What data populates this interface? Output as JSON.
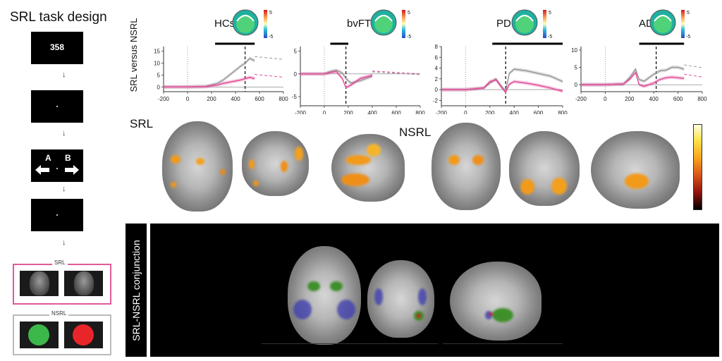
{
  "task_panel": {
    "title": "SRL task design",
    "screen1_text": "358",
    "choice_left": "A",
    "choice_right": "B",
    "arrow_glyph": "↓",
    "srl_box_label": "SRL",
    "nsrl_box_label": "NSRL",
    "colors": {
      "srl_border": "#e05b9a",
      "nsrl_border": "#bbbbbb",
      "green_dot": "#3cb84a",
      "red_dot": "#e8262a"
    }
  },
  "colorbar_scale": {
    "top": "5",
    "bottom": "-5"
  },
  "chart_data": [
    {
      "type": "line",
      "group": "HCs",
      "ylabel": "SRL versus NSRL",
      "xlim": [
        -200,
        800
      ],
      "ylim": [
        -2,
        17
      ],
      "x_ticks": [
        "-200",
        "0",
        "200",
        "400",
        "600",
        "800"
      ],
      "y_ticks": [
        "0",
        "5",
        "10",
        "15"
      ],
      "marker_x": 480,
      "bar": [
        230,
        560
      ],
      "series": [
        {
          "color": "#999999",
          "x": [
            -200,
            0,
            150,
            200,
            250,
            300,
            350,
            400,
            450,
            480,
            520,
            560
          ],
          "y": [
            0,
            0,
            0.2,
            0.8,
            1.5,
            3,
            5,
            7,
            9,
            10,
            12,
            11
          ]
        },
        {
          "color": "#e0509a",
          "x": [
            -200,
            0,
            150,
            200,
            250,
            300,
            350,
            400,
            450,
            480,
            520,
            560
          ],
          "y": [
            0,
            0,
            0.1,
            0.5,
            0.8,
            1.5,
            2,
            2.5,
            3,
            3.5,
            4,
            3.5
          ]
        }
      ]
    },
    {
      "type": "line",
      "group": "bvFTD",
      "xlim": [
        -200,
        800
      ],
      "ylim": [
        -7,
        6
      ],
      "x_ticks": [
        "-200",
        "0",
        "200",
        "400",
        "600",
        "800"
      ],
      "y_ticks": [
        "-5",
        "0",
        "5"
      ],
      "marker_x": 180,
      "bar": [
        50,
        200
      ],
      "series": [
        {
          "color": "#999999",
          "x": [
            -200,
            0,
            50,
            100,
            150,
            180,
            220,
            300,
            400
          ],
          "y": [
            0,
            0,
            0.5,
            0.8,
            0.2,
            -1,
            -2,
            -1.5,
            -0.5
          ]
        },
        {
          "color": "#e0509a",
          "x": [
            -200,
            0,
            50,
            100,
            150,
            180,
            220,
            300,
            400
          ],
          "y": [
            0,
            0,
            0.3,
            0.5,
            -1,
            -3,
            -2.5,
            -1,
            -0.3
          ]
        }
      ]
    },
    {
      "type": "line",
      "group": "PD",
      "xlim": [
        -200,
        800
      ],
      "ylim": [
        -3,
        8
      ],
      "x_ticks": [
        "-200",
        "0",
        "200",
        "400",
        "600",
        "800"
      ],
      "y_ticks": [
        "-2",
        "0",
        "2",
        "4",
        "6",
        "8"
      ],
      "marker_x": 330,
      "bar": [
        220,
        800
      ],
      "series": [
        {
          "color": "#999999",
          "x": [
            -200,
            0,
            150,
            200,
            250,
            300,
            330,
            360,
            400,
            500,
            600,
            700,
            800
          ],
          "y": [
            0,
            0,
            0.3,
            1.2,
            2,
            0.5,
            -0.3,
            3,
            3.8,
            3.5,
            3,
            2.5,
            1.5
          ]
        },
        {
          "color": "#e0509a",
          "x": [
            -200,
            0,
            150,
            200,
            250,
            300,
            330,
            360,
            400,
            500,
            600,
            700,
            800
          ],
          "y": [
            0,
            0,
            0.3,
            1.5,
            1.8,
            0.3,
            -0.5,
            1,
            1.5,
            1.2,
            0.8,
            0.3,
            -0.3
          ]
        }
      ]
    },
    {
      "type": "line",
      "group": "AD",
      "xlim": [
        -200,
        800
      ],
      "ylim": [
        -2,
        11
      ],
      "x_ticks": [
        "-200",
        "0",
        "200",
        "400",
        "600",
        "800"
      ],
      "y_ticks": [
        "0",
        "5",
        "10"
      ],
      "marker_x": 420,
      "bar": [
        280,
        650
      ],
      "series": [
        {
          "color": "#999999",
          "x": [
            -200,
            0,
            150,
            200,
            250,
            280,
            320,
            400,
            450,
            500,
            550,
            600,
            650
          ],
          "y": [
            0,
            0,
            0.2,
            2,
            4.5,
            1.5,
            1,
            3,
            4,
            4.2,
            5,
            5,
            4.5
          ]
        },
        {
          "color": "#e0509a",
          "x": [
            -200,
            0,
            150,
            200,
            250,
            280,
            320,
            400,
            450,
            500,
            550,
            600,
            650
          ],
          "y": [
            0,
            0,
            0.2,
            1.5,
            3.5,
            0,
            -0.5,
            0.5,
            1.5,
            2,
            2.2,
            2,
            1.8
          ]
        }
      ]
    }
  ],
  "brain_maps": {
    "srl_label": "SRL",
    "nsrl_label": "NSRL",
    "colors": {
      "activation": "#f29a1a",
      "conj_green": "#3f8f2a",
      "conj_blue": "#3a3ab0"
    }
  },
  "conjunction": {
    "label": "SRL-NSRL conjunction"
  }
}
